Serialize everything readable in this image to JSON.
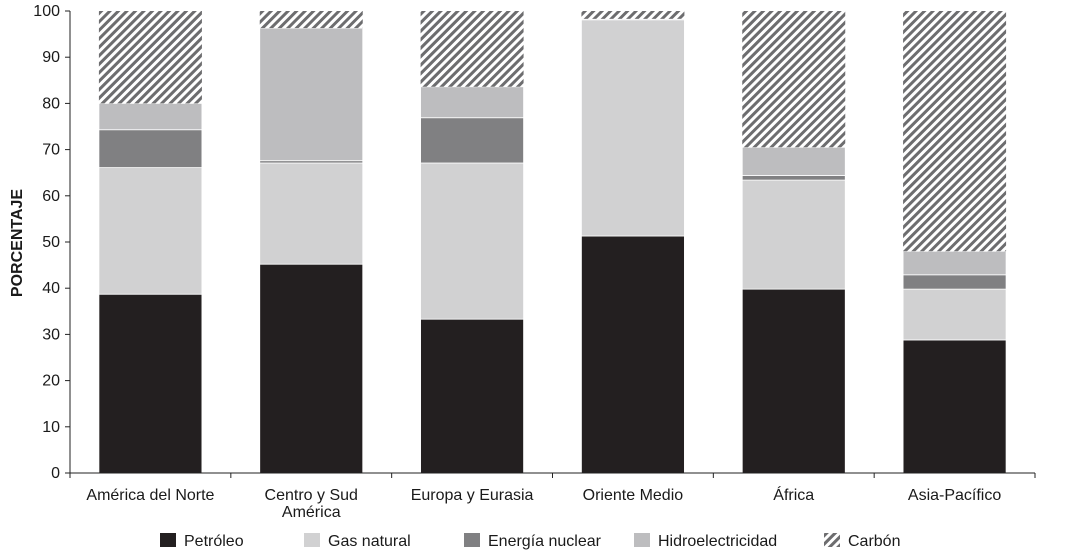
{
  "chart_data": {
    "type": "bar",
    "stacked": true,
    "ylabel": "PORCENTAJE",
    "ylim": [
      0,
      100
    ],
    "yticks": [
      "0",
      "10",
      "20",
      "30",
      "40",
      "50",
      "60",
      "70",
      "80",
      "90",
      "100"
    ],
    "categories": [
      [
        "América del Norte"
      ],
      [
        "Centro y Sud",
        "América"
      ],
      [
        "Europa y Eurasia"
      ],
      [
        "Oriente Medio"
      ],
      [
        "África"
      ],
      [
        "Asia-Pacífico"
      ]
    ],
    "series": [
      {
        "name": "Petróleo",
        "color": "#231f20",
        "pattern": "solid",
        "values": [
          38.7,
          45.2,
          33.3,
          51.3,
          39.8,
          28.8
        ]
      },
      {
        "name": "Gas natural",
        "color": "#d1d1d2",
        "pattern": "solid",
        "values": [
          27.4,
          21.9,
          33.8,
          46.8,
          23.6,
          11.0
        ]
      },
      {
        "name": "Energía nuclear",
        "color": "#808082",
        "pattern": "solid",
        "values": [
          8.2,
          0.5,
          9.8,
          0.0,
          1.0,
          3.1
        ]
      },
      {
        "name": "Hidroelectricidad",
        "color": "#bdbdbf",
        "pattern": "solid",
        "values": [
          5.7,
          28.7,
          6.7,
          0.2,
          6.1,
          5.1
        ]
      },
      {
        "name": "Carbón",
        "color": "#8a8a8c",
        "pattern": "hatch",
        "values": [
          20.0,
          3.7,
          16.4,
          1.7,
          29.5,
          52.0
        ]
      }
    ],
    "grid": false,
    "legend": "bottom"
  }
}
